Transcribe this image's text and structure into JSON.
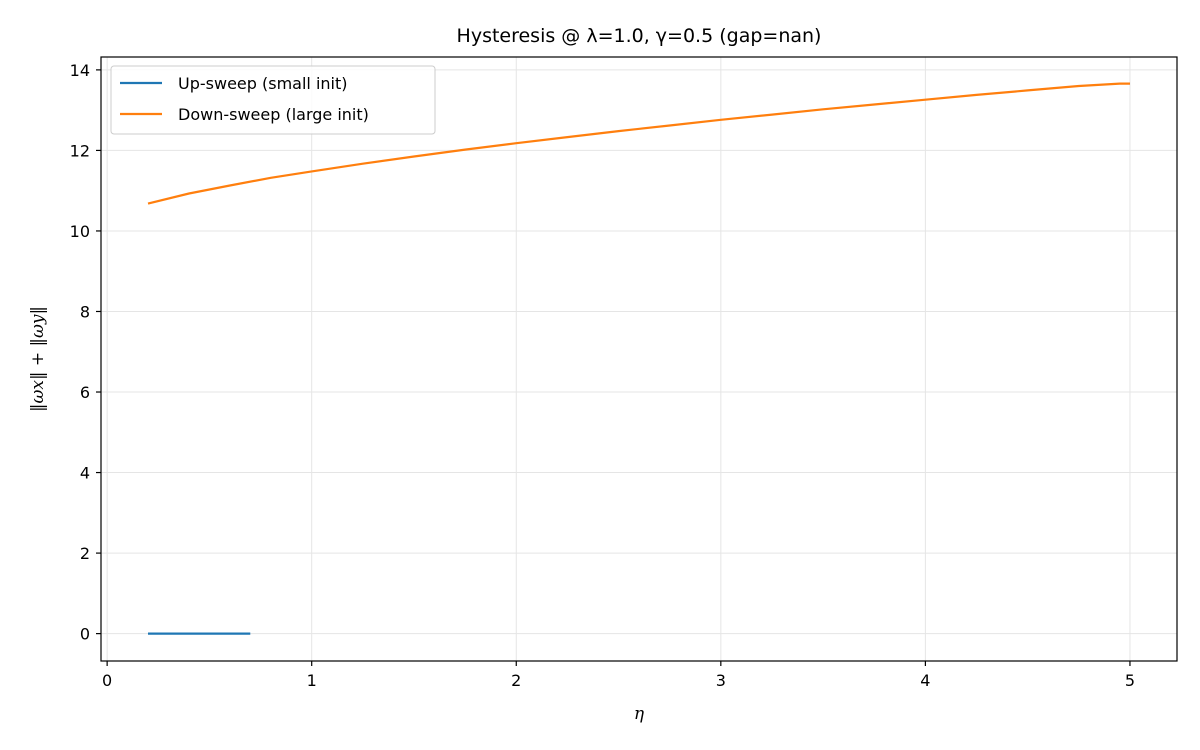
{
  "chart_data": {
    "type": "line",
    "title": "Hysteresis @ λ=1.0, γ=0.5 (gap=nan)",
    "xlabel": "η",
    "ylabel": "‖ωx‖ + ‖ωy‖",
    "xlim": [
      -0.03,
      5.23
    ],
    "ylim": [
      -0.68,
      14.32
    ],
    "xticks": [
      0,
      1,
      2,
      3,
      4,
      5
    ],
    "yticks": [
      0,
      2,
      4,
      6,
      8,
      10,
      12,
      14
    ],
    "grid": true,
    "legend_position": "upper-left",
    "series": [
      {
        "name": "Up-sweep (small init)",
        "color": "#1f77b4",
        "x": [
          0.2,
          0.3,
          0.4,
          0.5,
          0.6,
          0.7
        ],
        "y": [
          0,
          0,
          0,
          0,
          0,
          0
        ]
      },
      {
        "name": "Down-sweep (large init)",
        "color": "#ff7f0e",
        "x": [
          0.2,
          0.4,
          0.6,
          0.8,
          1.0,
          1.25,
          1.5,
          1.75,
          2.0,
          2.25,
          2.5,
          2.75,
          3.0,
          3.25,
          3.5,
          3.75,
          4.0,
          4.25,
          4.5,
          4.75,
          4.95,
          5.0
        ],
        "y": [
          10.68,
          10.93,
          11.13,
          11.32,
          11.48,
          11.67,
          11.85,
          12.02,
          12.18,
          12.33,
          12.48,
          12.62,
          12.76,
          12.89,
          13.02,
          13.14,
          13.26,
          13.38,
          13.49,
          13.6,
          13.66,
          13.66
        ]
      }
    ]
  }
}
